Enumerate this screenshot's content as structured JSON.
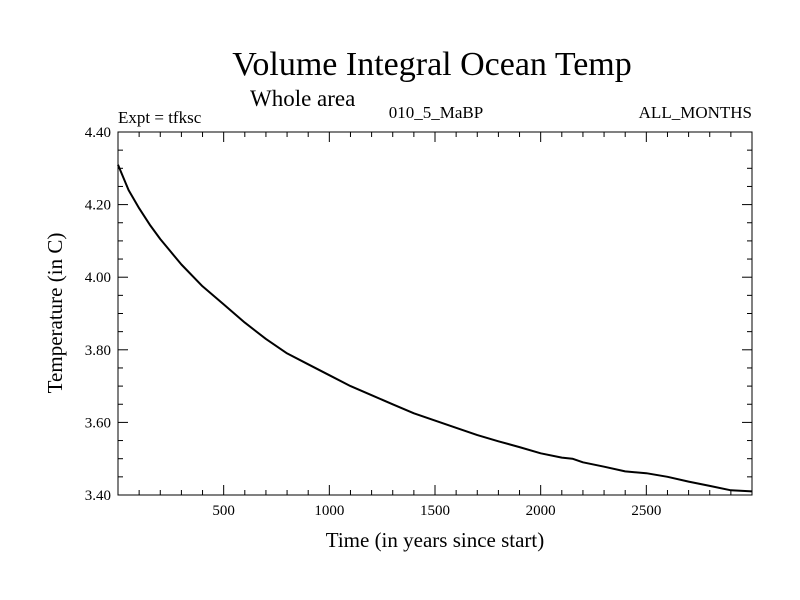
{
  "chart_data": {
    "type": "line",
    "title": "Volume Integral Ocean Temp",
    "subtitle": "Whole area",
    "experiment_label": "Expt = tfksc",
    "period_label": "010_5_MaBP",
    "months_label": "ALL_MONTHS",
    "xlabel": "Time (in years since start)",
    "ylabel": "Temperature (in C)",
    "xlim": [
      0,
      3000
    ],
    "ylim": [
      3.4,
      4.4
    ],
    "x_ticks": [
      500,
      1000,
      1500,
      2000,
      2500
    ],
    "x_tick_labels": [
      "500",
      "1000",
      "1500",
      "2000",
      "2500"
    ],
    "y_ticks": [
      3.4,
      3.6,
      3.8,
      4.0,
      4.2,
      4.4
    ],
    "y_tick_labels": [
      "3.40",
      "3.60",
      "3.80",
      "4.00",
      "4.20",
      "4.40"
    ],
    "grid": false,
    "series": [
      {
        "name": "Volume integral ocean temperature",
        "color": "#000000",
        "x": [
          0,
          50,
          100,
          150,
          200,
          250,
          300,
          400,
          500,
          600,
          700,
          800,
          900,
          1000,
          1100,
          1200,
          1300,
          1400,
          1500,
          1600,
          1700,
          1800,
          1900,
          2000,
          2100,
          2150,
          2200,
          2300,
          2400,
          2500,
          2600,
          2700,
          2800,
          2900,
          3000
        ],
        "values": [
          4.31,
          4.24,
          4.19,
          4.145,
          4.105,
          4.07,
          4.035,
          3.975,
          3.925,
          3.875,
          3.83,
          3.79,
          3.76,
          3.73,
          3.7,
          3.675,
          3.65,
          3.625,
          3.605,
          3.585,
          3.565,
          3.548,
          3.532,
          3.515,
          3.503,
          3.5,
          3.49,
          3.478,
          3.465,
          3.46,
          3.45,
          3.437,
          3.425,
          3.413,
          3.41
        ]
      }
    ]
  }
}
